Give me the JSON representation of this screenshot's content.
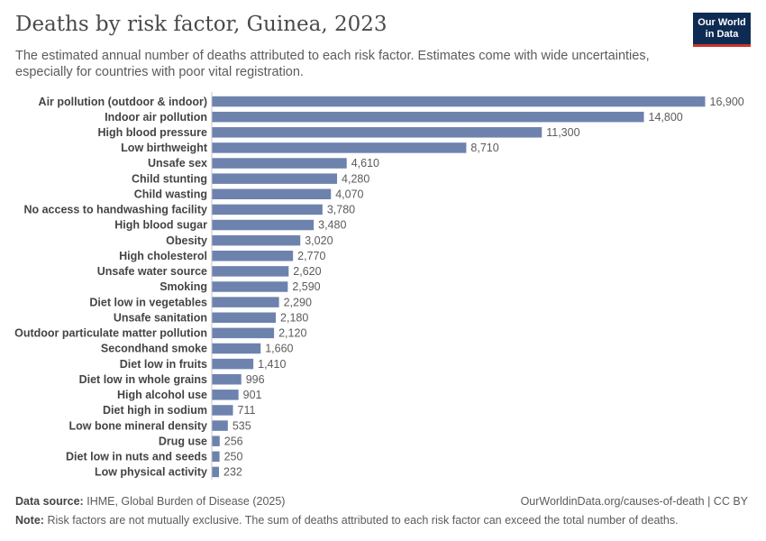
{
  "header": {
    "title": "Deaths by risk factor, Guinea, 2023",
    "subtitle": "The estimated annual number of deaths attributed to each risk factor. Estimates come with wide uncertainties, especially for countries with poor vital registration."
  },
  "logo": {
    "line1": "Our World",
    "line2": "in Data"
  },
  "colors": {
    "bar": "#6d83ae",
    "axis": "#c6c6c6"
  },
  "chart_data": {
    "type": "bar",
    "orientation": "horizontal",
    "title": "Deaths by risk factor, Guinea, 2023",
    "xlim": [
      0,
      16900
    ],
    "categories": [
      "Air pollution (outdoor & indoor)",
      "Indoor air pollution",
      "High blood pressure",
      "Low birthweight",
      "Unsafe sex",
      "Child stunting",
      "Child wasting",
      "No access to handwashing facility",
      "High blood sugar",
      "Obesity",
      "High cholesterol",
      "Unsafe water source",
      "Smoking",
      "Diet low in vegetables",
      "Unsafe sanitation",
      "Outdoor particulate matter pollution",
      "Secondhand smoke",
      "Diet low in fruits",
      "Diet low in whole grains",
      "High alcohol use",
      "Diet high in sodium",
      "Low bone mineral density",
      "Drug use",
      "Diet low in nuts and seeds",
      "Low physical activity"
    ],
    "values": [
      16900,
      14800,
      11300,
      8710,
      4610,
      4280,
      4070,
      3780,
      3480,
      3020,
      2770,
      2620,
      2590,
      2290,
      2180,
      2120,
      1660,
      1410,
      996,
      901,
      711,
      535,
      256,
      250,
      232
    ],
    "value_labels": [
      "16,900",
      "14,800",
      "11,300",
      "8,710",
      "4,610",
      "4,280",
      "4,070",
      "3,780",
      "3,480",
      "3,020",
      "2,770",
      "2,620",
      "2,590",
      "2,290",
      "2,180",
      "2,120",
      "1,660",
      "1,410",
      "996",
      "901",
      "711",
      "535",
      "256",
      "250",
      "232"
    ]
  },
  "footer": {
    "source_label": "Data source:",
    "source_text": "IHME, Global Burden of Disease (2025)",
    "url": "OurWorldinData.org/causes-of-death | CC BY",
    "note_label": "Note:",
    "note_text": "Risk factors are not mutually exclusive. The sum of deaths attributed to each risk factor can exceed the total number of deaths."
  }
}
